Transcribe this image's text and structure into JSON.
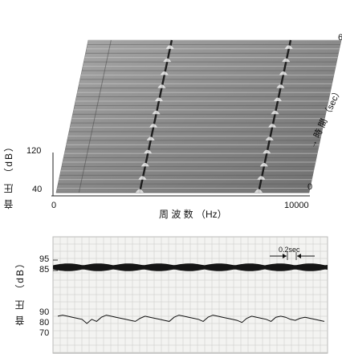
{
  "colors": {
    "panel_gray": "#8f8f8f",
    "panel_dark": "#5a5a5a",
    "ridge": "#1e1e1e",
    "paper": "#f3f3f1",
    "grid": "#c9c9c6",
    "trace": "#111111"
  },
  "chart_data": [
    {
      "type": "area",
      "kind": "waterfall spectrogram",
      "xlabel": "周 波 数 （Hz）",
      "ylabel": "音 圧 （dB）",
      "zlabel": "→ 時 間 （sec）",
      "x_ticks": [
        "0",
        "10000"
      ],
      "y_ticks": [
        "40",
        "120"
      ],
      "z_ticks": [
        "0",
        "6"
      ],
      "xlim": [
        0,
        10000
      ],
      "zlim": [
        0,
        6
      ],
      "peaks_hz": [
        3300,
        8000
      ],
      "n_traces": 36
    },
    {
      "type": "line",
      "ylabel": "音 圧 （dB）",
      "upper_ticks": [
        "95",
        "85"
      ],
      "lower_ticks": [
        "90",
        "80",
        "70"
      ],
      "annotation": "0.2sec",
      "series": [
        {
          "values": [
            87,
            88,
            87,
            86,
            85,
            84,
            80,
            84,
            82,
            86,
            88,
            87,
            86,
            85,
            84,
            83,
            82,
            85,
            87,
            86,
            85,
            84,
            83,
            82,
            86,
            88,
            87,
            86,
            85,
            84,
            82,
            86,
            88,
            87,
            86,
            85,
            84,
            83,
            81,
            85,
            87,
            86,
            85,
            84,
            82,
            86,
            87,
            86,
            84,
            83,
            85,
            86,
            85,
            84,
            83,
            82
          ]
        }
      ]
    }
  ]
}
